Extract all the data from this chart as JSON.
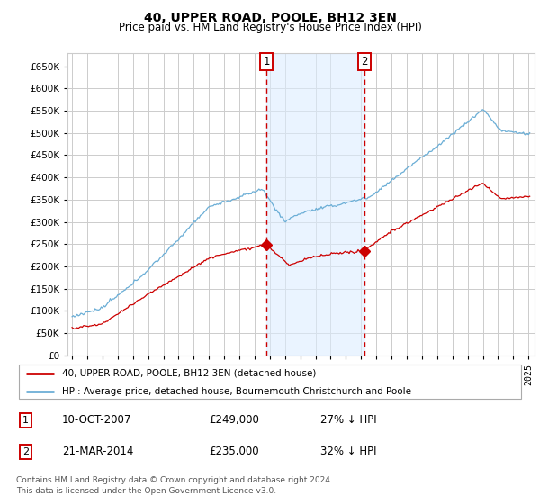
{
  "title": "40, UPPER ROAD, POOLE, BH12 3EN",
  "subtitle": "Price paid vs. HM Land Registry's House Price Index (HPI)",
  "ylim": [
    0,
    680000
  ],
  "yticks": [
    0,
    50000,
    100000,
    150000,
    200000,
    250000,
    300000,
    350000,
    400000,
    450000,
    500000,
    550000,
    600000,
    650000
  ],
  "hpi_color": "#6baed6",
  "price_color": "#cc0000",
  "marker1_date_label": "10-OCT-2007",
  "marker1_price": 249000,
  "marker1_hpi_pct": "27% ↓ HPI",
  "marker2_date_label": "21-MAR-2014",
  "marker2_price": 235000,
  "marker2_hpi_pct": "32% ↓ HPI",
  "marker1_x": 2007.78,
  "marker2_x": 2014.22,
  "legend_label1": "40, UPPER ROAD, POOLE, BH12 3EN (detached house)",
  "legend_label2": "HPI: Average price, detached house, Bournemouth Christchurch and Poole",
  "footer1": "Contains HM Land Registry data © Crown copyright and database right 2024.",
  "footer2": "This data is licensed under the Open Government Licence v3.0.",
  "bg_color": "#ffffff",
  "grid_color": "#cccccc",
  "shade_color": "#ddeeff"
}
